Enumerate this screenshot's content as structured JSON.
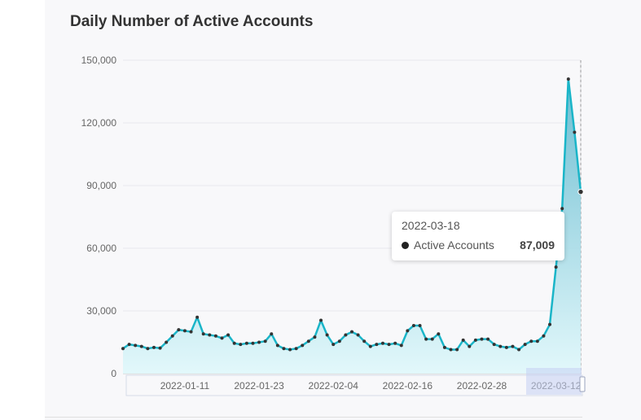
{
  "chart_data": {
    "type": "area",
    "title": "Daily Number of Active Accounts",
    "series": [
      {
        "name": "Active Accounts",
        "start_date": "2022-01-01",
        "values": [
          12000,
          14000,
          13500,
          13000,
          12000,
          12500,
          12200,
          15000,
          18000,
          21000,
          20500,
          20000,
          27000,
          19000,
          18500,
          18000,
          17000,
          18500,
          14500,
          14000,
          14500,
          14500,
          15000,
          15500,
          19000,
          13500,
          12000,
          11500,
          12000,
          13500,
          15500,
          17500,
          25500,
          18500,
          14000,
          15500,
          18500,
          20000,
          18500,
          15500,
          13000,
          14000,
          14500,
          14000,
          14500,
          13500,
          20500,
          23000,
          23000,
          16500,
          16500,
          19000,
          12500,
          11500,
          11500,
          16000,
          13000,
          16000,
          16500,
          16500,
          14000,
          13000,
          12500,
          13000,
          11500,
          14000,
          15500,
          15500,
          18000,
          23500,
          51000,
          79000,
          141000,
          115500,
          87009
        ]
      }
    ],
    "x_ticks": [
      "2022-01-11",
      "2022-01-23",
      "2022-02-04",
      "2022-02-16",
      "2022-02-28",
      "2022-03-12"
    ],
    "y_ticks": [
      "0",
      "30,000",
      "60,000",
      "90,000",
      "120,000",
      "150,000"
    ],
    "ylim": [
      0,
      150000
    ],
    "grid": true,
    "line_color": "#1ab5c8",
    "marker_color": "#333333",
    "tooltip": {
      "date": "2022-03-18",
      "series": "Active Accounts",
      "value": "87,009"
    }
  }
}
